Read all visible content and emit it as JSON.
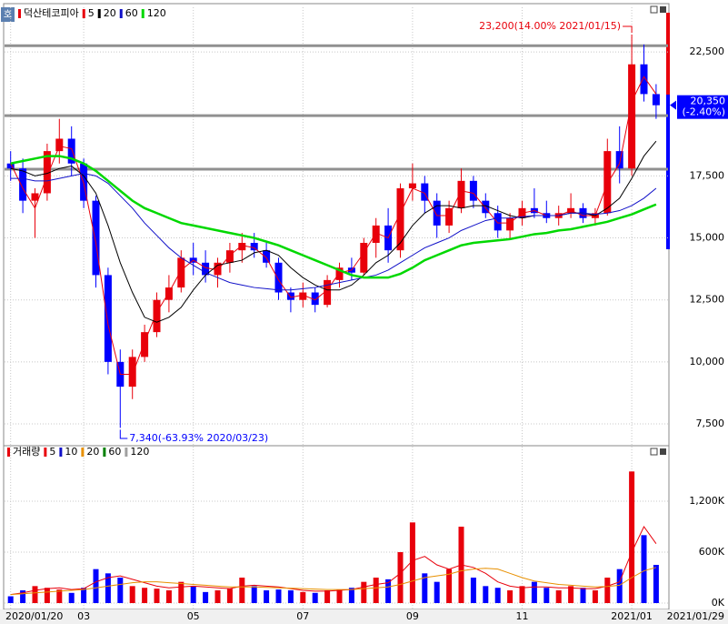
{
  "chart_data": {
    "type": "candlestick",
    "name": "덕산테코피아",
    "categories": [
      "2020/01/20",
      null,
      null,
      null,
      null,
      null,
      "03",
      null,
      null,
      null,
      null,
      null,
      null,
      null,
      null,
      "05",
      null,
      null,
      null,
      null,
      null,
      null,
      null,
      null,
      "07",
      null,
      null,
      null,
      null,
      null,
      null,
      null,
      null,
      "09",
      null,
      null,
      null,
      null,
      null,
      null,
      null,
      null,
      "11",
      null,
      null,
      null,
      null,
      null,
      null,
      null,
      null,
      "2021/01",
      null,
      null
    ],
    "end_date": "2021/01/29",
    "open": [
      18000,
      17800,
      16500,
      16800,
      18500,
      19000,
      18000,
      16500,
      13500,
      10000,
      9000,
      10200,
      11200,
      12500,
      13000,
      14200,
      14000,
      13500,
      14000,
      14500,
      14800,
      14500,
      14000,
      12800,
      12500,
      12800,
      12300,
      13300,
      13800,
      13600,
      14800,
      15500,
      14500,
      17000,
      17200,
      16500,
      15500,
      16200,
      17300,
      16500,
      16000,
      15300,
      15800,
      16200,
      16000,
      15800,
      16000,
      16200,
      15800,
      16000,
      18500,
      17800,
      22000,
      20800
    ],
    "high": [
      18500,
      18200,
      17000,
      18800,
      19800,
      19500,
      18200,
      16700,
      13800,
      10500,
      10500,
      11500,
      12800,
      13500,
      14500,
      14800,
      14500,
      14200,
      14800,
      15200,
      15200,
      14800,
      14200,
      13000,
      13200,
      13000,
      13500,
      14000,
      14200,
      15000,
      15800,
      16200,
      17200,
      18000,
      17500,
      16800,
      16500,
      17800,
      17500,
      16800,
      16300,
      16000,
      16500,
      17000,
      16500,
      16300,
      16800,
      16400,
      16200,
      19000,
      19500,
      23200,
      22800,
      21200
    ],
    "low": [
      17300,
      16000,
      15000,
      16500,
      18000,
      17500,
      16200,
      13000,
      9500,
      7340,
      8500,
      10000,
      11000,
      12000,
      12800,
      13500,
      13200,
      13000,
      13600,
      14000,
      14200,
      13800,
      12500,
      12000,
      12200,
      12000,
      12200,
      13000,
      13300,
      13500,
      14200,
      14000,
      14200,
      16500,
      16000,
      15000,
      15200,
      16000,
      16200,
      15800,
      15000,
      15000,
      15500,
      15800,
      15600,
      15500,
      15800,
      15600,
      15500,
      15900,
      17200,
      17500,
      20500,
      19800
    ],
    "close": [
      17800,
      16500,
      16800,
      18500,
      19000,
      18000,
      16500,
      13500,
      10000,
      9000,
      10200,
      11200,
      12500,
      13000,
      14200,
      14000,
      13500,
      14000,
      14500,
      14800,
      14500,
      14000,
      12800,
      12500,
      12800,
      12300,
      13300,
      13800,
      13600,
      14800,
      15500,
      14500,
      17000,
      17200,
      16500,
      15500,
      16200,
      17300,
      16500,
      16000,
      15300,
      15800,
      16200,
      16000,
      15800,
      16000,
      16200,
      15800,
      16000,
      18500,
      17800,
      22000,
      20800,
      20350
    ],
    "up_color": "#e8000b",
    "down_color": "#0000ff",
    "series": [
      {
        "name": "5",
        "color": "#e8000b",
        "values": [
          18000,
          17000,
          16200,
          17500,
          18700,
          18600,
          17200,
          14800,
          11500,
          9500,
          9500,
          10800,
          12000,
          12800,
          13700,
          14100,
          13800,
          13700,
          14300,
          14700,
          14600,
          14200,
          13300,
          12600,
          12700,
          12500,
          12900,
          13600,
          13700,
          14400,
          15200,
          15000,
          16000,
          17000,
          16800,
          15900,
          15900,
          16900,
          16800,
          16200,
          15600,
          15600,
          16000,
          16100,
          15900,
          15900,
          16100,
          15900,
          15900,
          17200,
          18000,
          20500,
          21500,
          20800
        ]
      },
      {
        "name": "20",
        "color": "#000000",
        "values": [
          17800,
          17700,
          17500,
          17600,
          17800,
          17900,
          17500,
          16800,
          15500,
          14000,
          12800,
          11800,
          11600,
          11800,
          12200,
          12900,
          13500,
          13900,
          14000,
          14100,
          14400,
          14500,
          14300,
          13800,
          13400,
          13100,
          12900,
          12900,
          13100,
          13500,
          14000,
          14300,
          14800,
          15500,
          16000,
          16300,
          16300,
          16200,
          16300,
          16300,
          16100,
          15900,
          15800,
          15900,
          15900,
          15900,
          16000,
          16000,
          15900,
          16200,
          16600,
          17400,
          18300,
          18900
        ]
      },
      {
        "name": "60",
        "color": "#1010c8",
        "values": [
          17400,
          17400,
          17300,
          17300,
          17400,
          17500,
          17600,
          17500,
          17200,
          16700,
          16200,
          15600,
          15100,
          14600,
          14200,
          13900,
          13600,
          13400,
          13200,
          13100,
          13000,
          12950,
          12900,
          12900,
          12950,
          13000,
          13100,
          13200,
          13300,
          13400,
          13500,
          13700,
          14000,
          14300,
          14600,
          14800,
          15000,
          15300,
          15500,
          15700,
          15800,
          15800,
          15850,
          15900,
          15900,
          15900,
          16000,
          16000,
          15950,
          16000,
          16100,
          16300,
          16600,
          17000
        ]
      },
      {
        "name": "120",
        "color": "#00d800",
        "values": [
          18000,
          18100,
          18200,
          18300,
          18300,
          18200,
          18000,
          17700,
          17300,
          16900,
          16500,
          16200,
          16000,
          15800,
          15600,
          15500,
          15400,
          15300,
          15200,
          15100,
          15000,
          14850,
          14700,
          14500,
          14300,
          14100,
          13900,
          13700,
          13500,
          13400,
          13400,
          13400,
          13550,
          13800,
          14100,
          14300,
          14500,
          14700,
          14800,
          14850,
          14900,
          14950,
          15050,
          15150,
          15200,
          15300,
          15350,
          15450,
          15550,
          15650,
          15800,
          15950,
          16150,
          16350
        ]
      }
    ],
    "ylim": [
      6620,
      24300
    ],
    "yticks": [
      {
        "value": 7500,
        "label": "7,500"
      },
      {
        "value": 10000,
        "label": "10,000"
      },
      {
        "value": 12500,
        "label": "12,500"
      },
      {
        "value": 15000,
        "label": "15,000"
      },
      {
        "value": 17500,
        "label": "17,500"
      },
      {
        "value": 22500,
        "label": "22,500"
      }
    ],
    "levels": [
      22750,
      19930,
      17770
    ],
    "high_note": {
      "value": 23200,
      "label": "23,200(14.00% 2021/01/15)"
    },
    "low_note": {
      "value": 7340,
      "label": "7,340(-63.93% 2020/03/23)"
    },
    "current": {
      "value": 20350,
      "label": "20,350",
      "change": "(-2.40%)"
    },
    "volume": {
      "name": "거래량",
      "values": [
        80000,
        150000,
        200000,
        180000,
        160000,
        120000,
        180000,
        400000,
        350000,
        300000,
        200000,
        180000,
        170000,
        150000,
        250000,
        200000,
        130000,
        150000,
        170000,
        300000,
        200000,
        150000,
        160000,
        150000,
        130000,
        120000,
        150000,
        160000,
        180000,
        250000,
        300000,
        280000,
        600000,
        950000,
        350000,
        250000,
        400000,
        900000,
        300000,
        200000,
        180000,
        150000,
        200000,
        250000,
        180000,
        150000,
        200000,
        180000,
        150000,
        300000,
        400000,
        1550000,
        800000,
        450000
      ],
      "series": [
        {
          "name": "5",
          "color": "#e8000b",
          "values": [
            100000,
            120000,
            150000,
            170000,
            180000,
            160000,
            170000,
            250000,
            300000,
            320000,
            280000,
            240000,
            200000,
            180000,
            190000,
            200000,
            190000,
            180000,
            170000,
            200000,
            210000,
            200000,
            190000,
            170000,
            150000,
            140000,
            140000,
            150000,
            160000,
            190000,
            220000,
            240000,
            350000,
            500000,
            550000,
            450000,
            400000,
            450000,
            420000,
            350000,
            250000,
            200000,
            180000,
            190000,
            190000,
            180000,
            180000,
            170000,
            170000,
            200000,
            250000,
            600000,
            900000,
            700000
          ]
        },
        {
          "name": "10",
          "color": "#1010c8",
          "values": null
        },
        {
          "name": "20",
          "color": "#e89000",
          "values": [
            100000,
            110000,
            120000,
            130000,
            140000,
            150000,
            160000,
            180000,
            200000,
            220000,
            240000,
            250000,
            250000,
            240000,
            230000,
            220000,
            210000,
            200000,
            190000,
            190000,
            190000,
            185000,
            180000,
            175000,
            170000,
            165000,
            160000,
            160000,
            160000,
            170000,
            180000,
            190000,
            220000,
            260000,
            300000,
            320000,
            340000,
            380000,
            400000,
            410000,
            400000,
            350000,
            300000,
            260000,
            240000,
            220000,
            210000,
            200000,
            190000,
            195000,
            210000,
            300000,
            380000,
            420000
          ]
        },
        {
          "name": "60",
          "color": "#008000",
          "values": null
        },
        {
          "name": "120",
          "color": "#a0a0a0",
          "values": null
        }
      ],
      "ylim": [
        -75000,
        1832000
      ],
      "yticks": [
        {
          "value": 0,
          "label": "0K"
        },
        {
          "value": 600000,
          "label": "600K"
        },
        {
          "value": 1200000,
          "label": "1,200K"
        }
      ]
    }
  }
}
